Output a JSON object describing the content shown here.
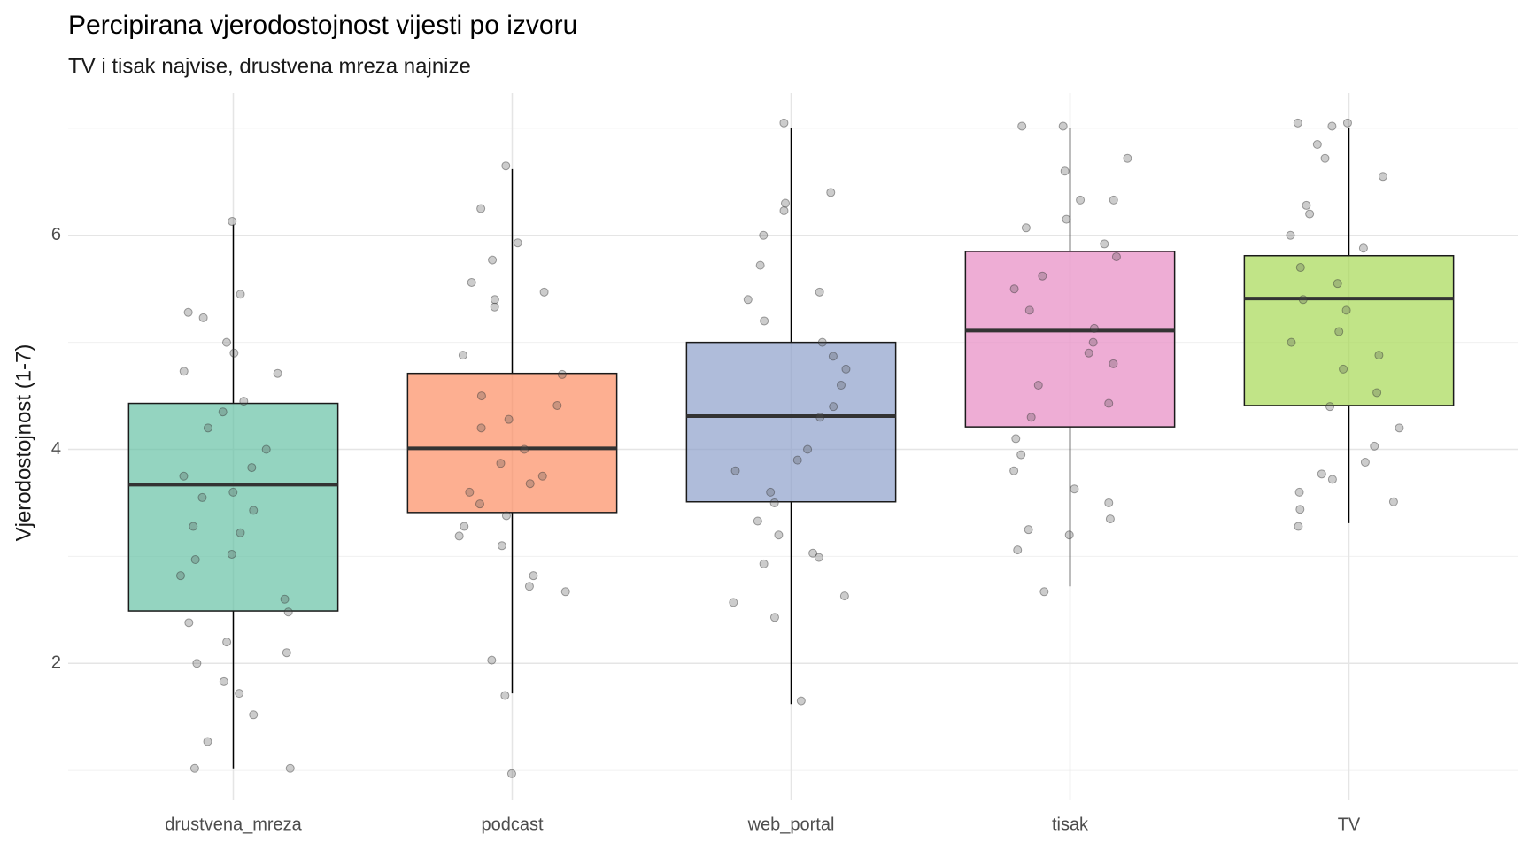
{
  "chart_data": {
    "type": "boxplot",
    "title": "Percipirana vjerodostojnost vijesti po izvoru",
    "subtitle": "TV i tisak najvise, drustvena mreza najnize",
    "y_label": "Vjerodostojnost (1-7)",
    "categories": [
      "drustvena_mreza",
      "podcast",
      "web_portal",
      "tisak",
      "TV"
    ],
    "colors": [
      "#66c2a5",
      "#fc8d62",
      "#8da0cb",
      "#e78ac3",
      "#a6d854"
    ],
    "boxes": [
      {
        "whisker_low": 1.02,
        "q1": 2.49,
        "median": 3.67,
        "q3": 4.43,
        "whisker_high": 6.1
      },
      {
        "whisker_low": 1.72,
        "q1": 3.41,
        "median": 4.01,
        "q3": 4.71,
        "whisker_high": 6.62
      },
      {
        "whisker_low": 1.62,
        "q1": 3.51,
        "median": 4.31,
        "q3": 5.0,
        "whisker_high": 7.0
      },
      {
        "whisker_low": 2.72,
        "q1": 4.21,
        "median": 5.11,
        "q3": 5.85,
        "whisker_high": 7.0
      },
      {
        "whisker_low": 3.31,
        "q1": 4.41,
        "median": 5.41,
        "q3": 5.81,
        "whisker_high": 7.0
      }
    ],
    "points": [
      [
        6.13,
        5.45,
        5.28,
        5.23,
        5.0,
        4.9,
        4.73,
        4.71,
        4.45,
        4.35,
        4.2,
        4.0,
        3.83,
        3.75,
        3.6,
        3.55,
        3.43,
        3.28,
        3.22,
        3.02,
        2.97,
        2.82,
        2.6,
        2.48,
        2.38,
        2.2,
        2.1,
        2.0,
        1.83,
        1.72,
        1.52,
        1.27,
        1.02,
        1.02
      ],
      [
        6.65,
        6.25,
        5.93,
        5.77,
        5.56,
        5.47,
        5.4,
        5.33,
        4.88,
        4.7,
        4.5,
        4.41,
        4.28,
        4.2,
        4.0,
        3.87,
        3.75,
        3.68,
        3.6,
        3.49,
        3.38,
        3.28,
        3.19,
        3.1,
        2.82,
        2.72,
        2.67,
        2.03,
        1.7,
        0.97
      ],
      [
        7.05,
        6.4,
        6.3,
        6.23,
        6.0,
        5.72,
        5.47,
        5.4,
        5.2,
        5.0,
        4.87,
        4.75,
        4.6,
        4.4,
        4.3,
        4.0,
        3.9,
        3.8,
        3.6,
        3.5,
        3.33,
        3.2,
        3.03,
        2.99,
        2.93,
        2.63,
        2.57,
        2.43,
        1.65
      ],
      [
        7.02,
        7.02,
        6.72,
        6.6,
        6.33,
        6.33,
        6.15,
        6.07,
        5.92,
        5.8,
        5.62,
        5.5,
        5.3,
        5.13,
        5.0,
        4.9,
        4.8,
        4.6,
        4.43,
        4.3,
        4.1,
        3.95,
        3.8,
        3.63,
        3.5,
        3.35,
        3.25,
        3.2,
        3.06,
        2.67
      ],
      [
        7.05,
        7.05,
        7.02,
        6.85,
        6.72,
        6.55,
        6.28,
        6.2,
        6.0,
        5.88,
        5.7,
        5.55,
        5.4,
        5.3,
        5.1,
        5.0,
        4.88,
        4.75,
        4.53,
        4.4,
        4.2,
        4.03,
        3.88,
        3.77,
        3.72,
        3.6,
        3.51,
        3.44,
        3.28
      ]
    ],
    "ylim": [
      0.72,
      7.33
    ],
    "yticks": [
      2,
      4,
      6
    ],
    "minor_yticks": [
      1,
      3,
      5,
      7
    ],
    "grid": true
  }
}
